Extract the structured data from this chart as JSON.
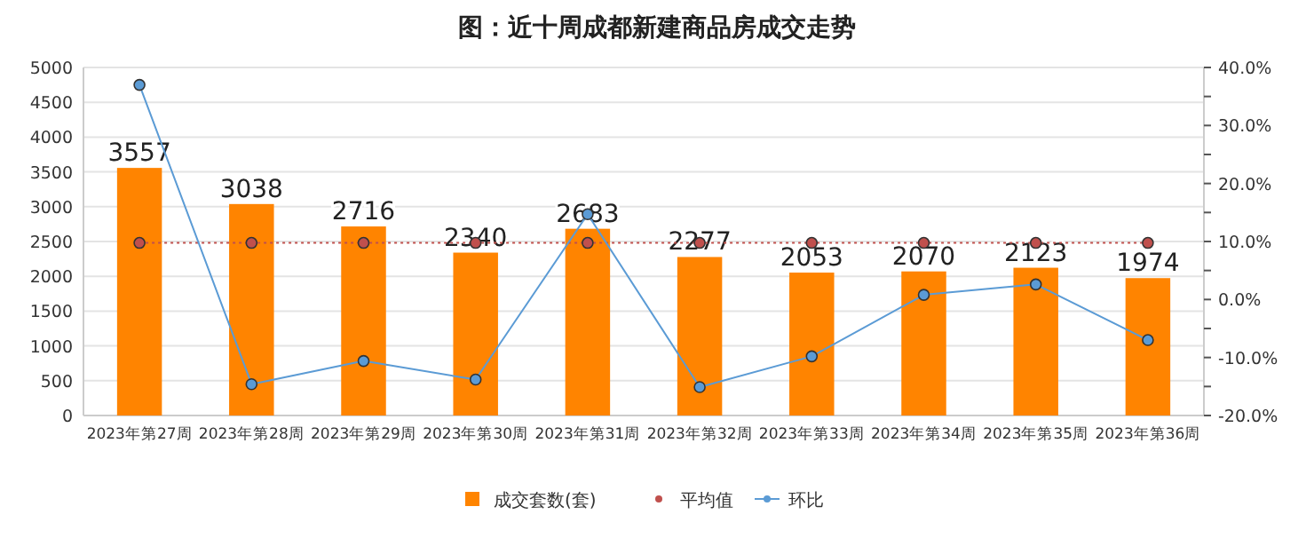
{
  "chart_data": {
    "type": "bar",
    "title": "图：近十周成都新建商品房成交走势",
    "categories": [
      "2023年第27周",
      "2023年第28周",
      "2023年第29周",
      "2023年第30周",
      "2023年第31周",
      "2023年第32周",
      "2023年第33周",
      "2023年第34周",
      "2023年第35周",
      "2023年第36周"
    ],
    "series": [
      {
        "name": "成交套数(套)",
        "color": "#ff8400",
        "values": [
          3557,
          3038,
          2716,
          2340,
          2683,
          2277,
          2053,
          2070,
          2123,
          1974
        ],
        "data_labels": true
      },
      {
        "name": "平均值",
        "type": "line",
        "color": "#c0504d",
        "marker": "circle",
        "line_style": "dotted",
        "values": [
          2480,
          2480,
          2480,
          2480,
          2480,
          2480,
          2480,
          2480,
          2480,
          2480
        ]
      },
      {
        "name": "环比",
        "type": "line",
        "axis": "y2",
        "color": "#5b9bd5",
        "marker": "circle",
        "line_style": "solid",
        "values": [
          37,
          -14.6,
          -10.6,
          -13.8,
          14.7,
          -15.1,
          -9.8,
          0.8,
          2.6,
          -7
        ]
      }
    ],
    "ylim": [
      0,
      5000
    ],
    "yticks": [
      0,
      500,
      1000,
      1500,
      2000,
      2500,
      3000,
      3500,
      4000,
      4500,
      5000
    ],
    "y2lim": [
      -20,
      40
    ],
    "y2ticks": [
      {
        "value": -20,
        "label": "-20.0%"
      },
      {
        "value": -15,
        "label": null
      },
      {
        "value": -10,
        "label": "-10.0%"
      },
      {
        "value": -5,
        "label": null
      },
      {
        "value": 0,
        "label": "0.0%"
      },
      {
        "value": 5,
        "label": null
      },
      {
        "value": 10,
        "label": "10.0%"
      },
      {
        "value": 15,
        "label": null
      },
      {
        "value": 20,
        "label": "20.0%"
      },
      {
        "value": 25,
        "label": null
      },
      {
        "value": 30,
        "label": "30.0%"
      },
      {
        "value": 35,
        "label": null
      },
      {
        "value": 40,
        "label": "40.0%"
      }
    ],
    "grid": "y",
    "legend": "bottom"
  }
}
